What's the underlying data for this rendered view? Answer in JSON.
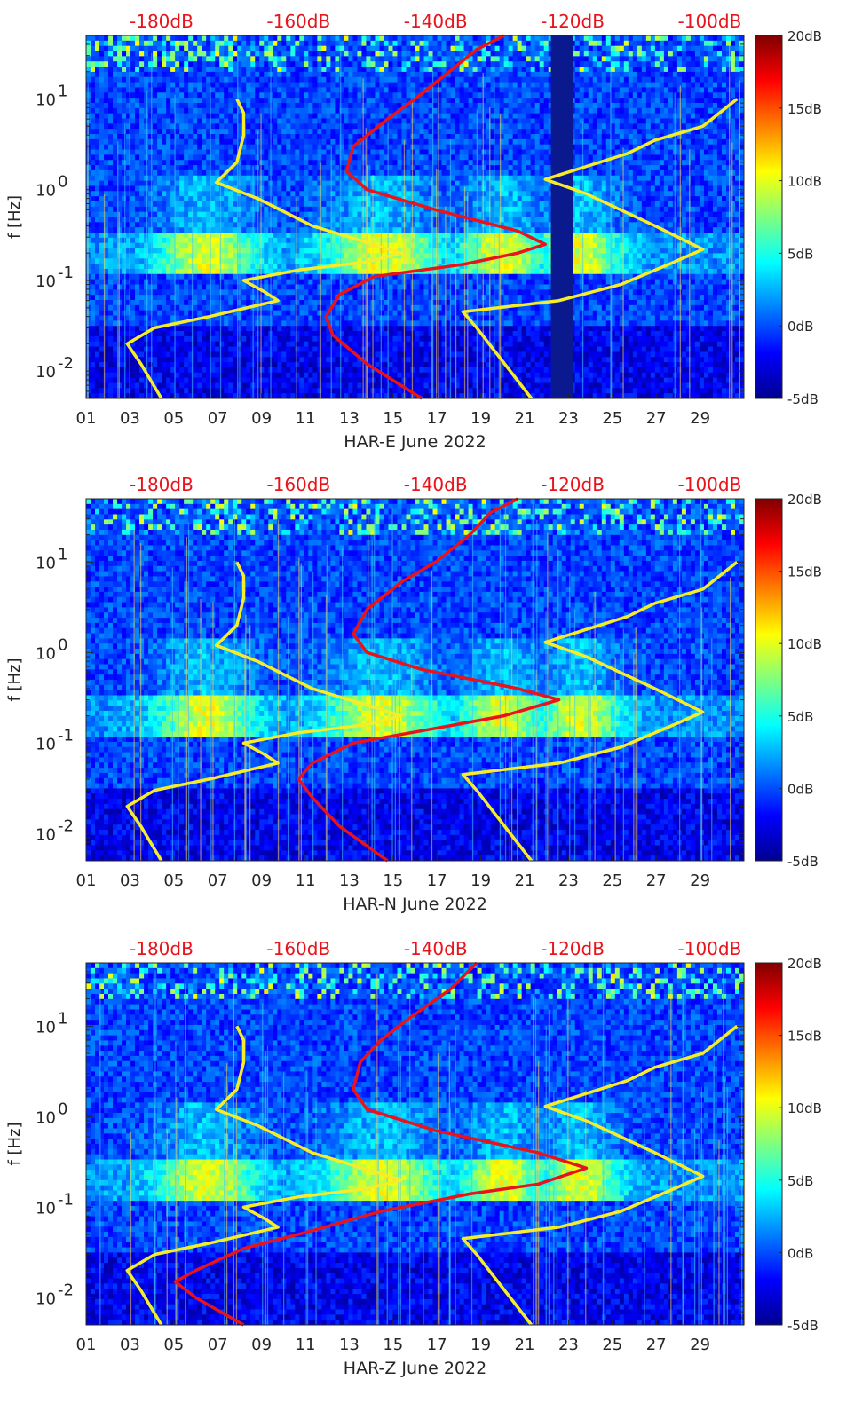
{
  "chart_data": [
    {
      "type": "heatmap",
      "xlabel": "HAR-E June 2022",
      "ylabel": "f [Hz]",
      "x_ticks": [
        "01",
        "03",
        "05",
        "07",
        "09",
        "11",
        "13",
        "15",
        "17",
        "19",
        "21",
        "23",
        "25",
        "27",
        "29"
      ],
      "x_range_days": [
        1,
        31
      ],
      "y_scale": "log",
      "y_ticks": [
        {
          "exp": 1,
          "value": 10
        },
        {
          "exp": 0,
          "value": 1
        },
        {
          "exp": -1,
          "value": 0.1
        },
        {
          "exp": -2,
          "value": 0.01
        }
      ],
      "y_range_hz": [
        0.005,
        50
      ],
      "top_axis": {
        "ticks": [
          "-180dB",
          "-160dB",
          "-140dB",
          "-120dB",
          "-100dB"
        ],
        "values_db": [
          -180,
          -160,
          -140,
          -120,
          -100
        ],
        "range_db": [
          -191,
          -95
        ],
        "color": "#e8131b"
      },
      "colorbar": {
        "ticks": [
          "20dB",
          "15dB",
          "10dB",
          "5dB",
          "0dB",
          "-5dB"
        ],
        "values": [
          20,
          15,
          10,
          5,
          0,
          -5
        ],
        "range": [
          -5,
          20
        ],
        "colormap": "jet"
      },
      "data_gap": {
        "from_day": 22.2,
        "to_day": 23.2
      },
      "series": [
        {
          "color": "#f5ec2a",
          "points": [
            [
              -180,
              0.005
            ],
            [
              -183,
              0.012
            ],
            [
              -185,
              0.02
            ],
            [
              -181,
              0.03
            ],
            [
              -173,
              0.04
            ],
            [
              -163,
              0.06
            ],
            [
              -165,
              0.075
            ],
            [
              -168,
              0.1
            ],
            [
              -160,
              0.13
            ],
            [
              -150,
              0.16
            ],
            [
              -145,
              0.2
            ],
            [
              -158,
              0.4
            ],
            [
              -166,
              0.8
            ],
            [
              -172,
              1.2
            ],
            [
              -169,
              2
            ],
            [
              -168,
              4
            ],
            [
              -168,
              7
            ],
            [
              -169,
              10
            ]
          ]
        },
        {
          "color": "#f5ec2a",
          "points": [
            [
              -126,
              0.005
            ],
            [
              -134,
              0.03
            ],
            [
              -136,
              0.045
            ],
            [
              -122,
              0.06
            ],
            [
              -113,
              0.09
            ],
            [
              -106,
              0.15
            ],
            [
              -101,
              0.22
            ],
            [
              -108,
              0.4
            ],
            [
              -118,
              0.9
            ],
            [
              -124,
              1.3
            ],
            [
              -112,
              2.5
            ],
            [
              -108,
              3.5
            ],
            [
              -101,
              5
            ],
            [
              -96,
              10
            ]
          ]
        },
        {
          "color": "#e8131b",
          "points": [
            [
              -142,
              0.005
            ],
            [
              -150,
              0.012
            ],
            [
              -155,
              0.025
            ],
            [
              -156,
              0.04
            ],
            [
              -154,
              0.07
            ],
            [
              -149,
              0.11
            ],
            [
              -136,
              0.15
            ],
            [
              -128,
              0.2
            ],
            [
              -124,
              0.25
            ],
            [
              -128,
              0.35
            ],
            [
              -140,
              0.6
            ],
            [
              -150,
              1
            ],
            [
              -153,
              1.6
            ],
            [
              -152,
              3
            ],
            [
              -147,
              6
            ],
            [
              -143,
              10
            ],
            [
              -138,
              20
            ],
            [
              -134,
              35
            ],
            [
              -130,
              50
            ]
          ]
        }
      ]
    },
    {
      "type": "heatmap",
      "xlabel": "HAR-N June 2022",
      "ylabel": "f [Hz]",
      "x_ticks": [
        "01",
        "03",
        "05",
        "07",
        "09",
        "11",
        "13",
        "15",
        "17",
        "19",
        "21",
        "23",
        "25",
        "27",
        "29"
      ],
      "x_range_days": [
        1,
        31
      ],
      "y_scale": "log",
      "y_ticks": [
        {
          "exp": 1,
          "value": 10
        },
        {
          "exp": 0,
          "value": 1
        },
        {
          "exp": -1,
          "value": 0.1
        },
        {
          "exp": -2,
          "value": 0.01
        }
      ],
      "y_range_hz": [
        0.005,
        50
      ],
      "top_axis": {
        "ticks": [
          "-180dB",
          "-160dB",
          "-140dB",
          "-120dB",
          "-100dB"
        ],
        "values_db": [
          -180,
          -160,
          -140,
          -120,
          -100
        ],
        "range_db": [
          -191,
          -95
        ],
        "color": "#e8131b"
      },
      "colorbar": {
        "ticks": [
          "20dB",
          "15dB",
          "10dB",
          "5dB",
          "0dB",
          "-5dB"
        ],
        "values": [
          20,
          15,
          10,
          5,
          0,
          -5
        ],
        "range": [
          -5,
          20
        ],
        "colormap": "jet"
      },
      "series": [
        {
          "color": "#f5ec2a",
          "points": [
            [
              -180,
              0.005
            ],
            [
              -183,
              0.012
            ],
            [
              -185,
              0.02
            ],
            [
              -181,
              0.03
            ],
            [
              -173,
              0.04
            ],
            [
              -163,
              0.06
            ],
            [
              -165,
              0.075
            ],
            [
              -168,
              0.1
            ],
            [
              -160,
              0.13
            ],
            [
              -150,
              0.16
            ],
            [
              -145,
              0.2
            ],
            [
              -158,
              0.4
            ],
            [
              -166,
              0.8
            ],
            [
              -172,
              1.2
            ],
            [
              -169,
              2
            ],
            [
              -168,
              4
            ],
            [
              -168,
              7
            ],
            [
              -169,
              10
            ]
          ]
        },
        {
          "color": "#f5ec2a",
          "points": [
            [
              -126,
              0.005
            ],
            [
              -134,
              0.03
            ],
            [
              -136,
              0.045
            ],
            [
              -122,
              0.06
            ],
            [
              -113,
              0.09
            ],
            [
              -106,
              0.15
            ],
            [
              -101,
              0.22
            ],
            [
              -108,
              0.4
            ],
            [
              -118,
              0.9
            ],
            [
              -124,
              1.3
            ],
            [
              -112,
              2.5
            ],
            [
              -108,
              3.5
            ],
            [
              -101,
              5
            ],
            [
              -96,
              10
            ]
          ]
        },
        {
          "color": "#e8131b",
          "points": [
            [
              -147,
              0.005
            ],
            [
              -154,
              0.012
            ],
            [
              -158,
              0.025
            ],
            [
              -160,
              0.04
            ],
            [
              -158,
              0.06
            ],
            [
              -152,
              0.1
            ],
            [
              -139,
              0.15
            ],
            [
              -130,
              0.2
            ],
            [
              -122,
              0.3
            ],
            [
              -128,
              0.4
            ],
            [
              -142,
              0.65
            ],
            [
              -150,
              1
            ],
            [
              -152,
              1.6
            ],
            [
              -150,
              3
            ],
            [
              -145,
              6
            ],
            [
              -140,
              10
            ],
            [
              -135,
              20
            ],
            [
              -132,
              35
            ],
            [
              -128,
              50
            ]
          ]
        }
      ]
    },
    {
      "type": "heatmap",
      "xlabel": "HAR-Z June 2022",
      "ylabel": "f [Hz]",
      "x_ticks": [
        "01",
        "03",
        "05",
        "07",
        "09",
        "11",
        "13",
        "15",
        "17",
        "19",
        "21",
        "23",
        "25",
        "27",
        "29"
      ],
      "x_range_days": [
        1,
        31
      ],
      "y_scale": "log",
      "y_ticks": [
        {
          "exp": 1,
          "value": 10
        },
        {
          "exp": 0,
          "value": 1
        },
        {
          "exp": -1,
          "value": 0.1
        },
        {
          "exp": -2,
          "value": 0.01
        }
      ],
      "y_range_hz": [
        0.005,
        50
      ],
      "top_axis": {
        "ticks": [
          "-180dB",
          "-160dB",
          "-140dB",
          "-120dB",
          "-100dB"
        ],
        "values_db": [
          -180,
          -160,
          -140,
          -120,
          -100
        ],
        "range_db": [
          -191,
          -95
        ],
        "color": "#e8131b"
      },
      "colorbar": {
        "ticks": [
          "20dB",
          "15dB",
          "10dB",
          "5dB",
          "0dB",
          "-5dB"
        ],
        "values": [
          20,
          15,
          10,
          5,
          0,
          -5
        ],
        "range": [
          -5,
          20
        ],
        "colormap": "jet"
      },
      "series": [
        {
          "color": "#f5ec2a",
          "points": [
            [
              -180,
              0.005
            ],
            [
              -183,
              0.012
            ],
            [
              -185,
              0.02
            ],
            [
              -181,
              0.03
            ],
            [
              -173,
              0.04
            ],
            [
              -163,
              0.06
            ],
            [
              -165,
              0.075
            ],
            [
              -168,
              0.1
            ],
            [
              -160,
              0.13
            ],
            [
              -150,
              0.16
            ],
            [
              -145,
              0.2
            ],
            [
              -158,
              0.4
            ],
            [
              -166,
              0.8
            ],
            [
              -172,
              1.2
            ],
            [
              -169,
              2
            ],
            [
              -168,
              4
            ],
            [
              -168,
              7
            ],
            [
              -169,
              10
            ]
          ]
        },
        {
          "color": "#f5ec2a",
          "points": [
            [
              -126,
              0.005
            ],
            [
              -134,
              0.03
            ],
            [
              -136,
              0.045
            ],
            [
              -122,
              0.06
            ],
            [
              -113,
              0.09
            ],
            [
              -106,
              0.15
            ],
            [
              -101,
              0.22
            ],
            [
              -108,
              0.4
            ],
            [
              -118,
              0.9
            ],
            [
              -124,
              1.3
            ],
            [
              -112,
              2.5
            ],
            [
              -108,
              3.5
            ],
            [
              -101,
              5
            ],
            [
              -96,
              10
            ]
          ]
        },
        {
          "color": "#e8131b",
          "points": [
            [
              -168,
              0.005
            ],
            [
              -175,
              0.01
            ],
            [
              -178,
              0.015
            ],
            [
              -175,
              0.02
            ],
            [
              -168,
              0.035
            ],
            [
              -158,
              0.055
            ],
            [
              -148,
              0.09
            ],
            [
              -135,
              0.14
            ],
            [
              -125,
              0.18
            ],
            [
              -118,
              0.27
            ],
            [
              -125,
              0.4
            ],
            [
              -140,
              0.7
            ],
            [
              -150,
              1.2
            ],
            [
              -152,
              2
            ],
            [
              -151,
              4
            ],
            [
              -148,
              7
            ],
            [
              -144,
              12
            ],
            [
              -138,
              25
            ],
            [
              -134,
              50
            ]
          ]
        }
      ]
    }
  ]
}
